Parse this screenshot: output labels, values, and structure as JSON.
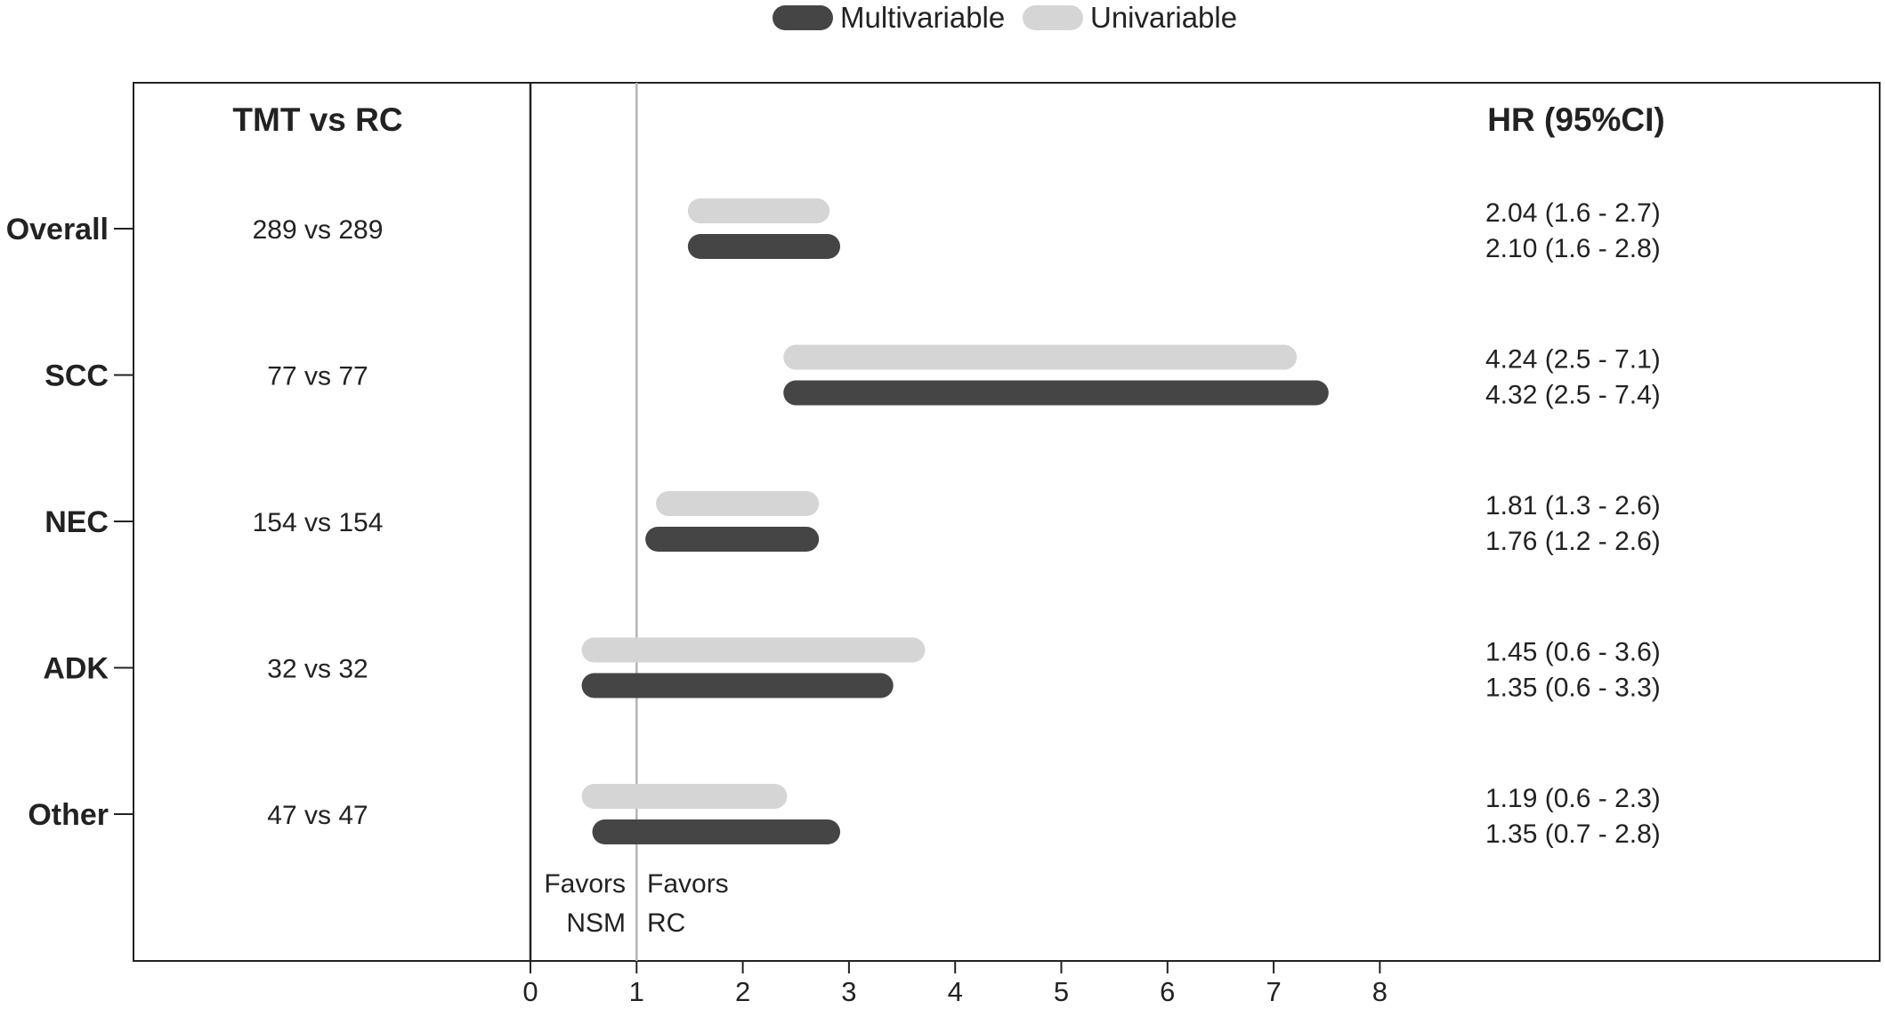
{
  "chart_data": {
    "type": "forest-bar",
    "legend": {
      "placement": "top-center",
      "items": [
        {
          "name": "Multivariable",
          "color": "#454545"
        },
        {
          "name": "Univariable",
          "color": "#d5d5d5"
        }
      ]
    },
    "column_headers": {
      "counts": "TMT vs RC",
      "estimates": "HR (95%CI)"
    },
    "x_axis": {
      "ticks": [
        "0",
        "1",
        "2",
        "3",
        "4",
        "5",
        "6",
        "7",
        "8"
      ],
      "xlim": [
        0,
        8
      ],
      "reference_line": 1
    },
    "annotations": {
      "left": [
        "Favors",
        "NSM"
      ],
      "right": [
        "Favors",
        "RC"
      ]
    },
    "categories": [
      "Overall",
      "SCC",
      "NEC",
      "ADK",
      "Other"
    ],
    "counts": [
      "289 vs 289",
      "77 vs 77",
      "154 vs 154",
      "32 vs 32",
      "47 vs 47"
    ],
    "series": [
      {
        "name": "Univariable",
        "color": "#d5d5d5",
        "hr": [
          2.04,
          4.24,
          1.81,
          1.45,
          1.19
        ],
        "lower": [
          1.6,
          2.5,
          1.3,
          0.6,
          0.6
        ],
        "upper": [
          2.7,
          7.1,
          2.6,
          3.6,
          2.3
        ],
        "labels": [
          "2.04 (1.6 - 2.7)",
          "4.24 (2.5 - 7.1)",
          "1.81 (1.3 - 2.6)",
          "1.45 (0.6 - 3.6)",
          "1.19 (0.6 - 2.3)"
        ]
      },
      {
        "name": "Multivariable",
        "color": "#454545",
        "hr": [
          2.1,
          4.32,
          1.76,
          1.35,
          1.35
        ],
        "lower": [
          1.6,
          2.5,
          1.2,
          0.6,
          0.7
        ],
        "upper": [
          2.8,
          7.4,
          2.6,
          3.3,
          2.8
        ],
        "labels": [
          "2.10 (1.6 - 2.8)",
          "4.32 (2.5 - 7.4)",
          "1.76 (1.2 - 2.6)",
          "1.35 (0.6 - 3.3)",
          "1.35 (0.7 - 2.8)"
        ]
      }
    ]
  }
}
